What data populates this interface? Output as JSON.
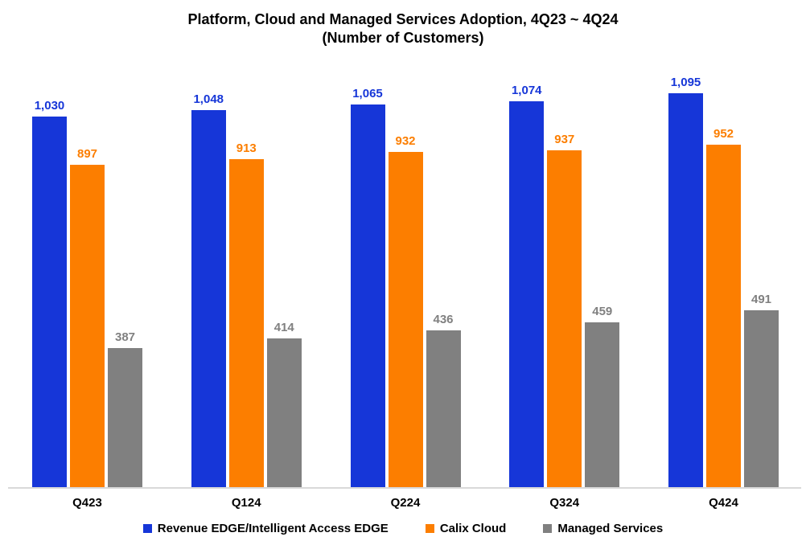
{
  "chart_data": {
    "type": "bar",
    "title": "Platform, Cloud and Managed Services Adoption, 4Q23 ~ 4Q24 (Number of Customers)",
    "title_lines": [
      "Platform, Cloud and Managed Services Adoption, 4Q23 ~ 4Q24",
      "(Number of Customers)"
    ],
    "categories": [
      "Q423",
      "Q124",
      "Q224",
      "Q324",
      "Q424"
    ],
    "series": [
      {
        "name": "Revenue EDGE/Intelligent Access EDGE",
        "color": "#1636D8",
        "values": [
          1030,
          1048,
          1065,
          1074,
          1095
        ],
        "labels": [
          "1,030",
          "1,048",
          "1,065",
          "1,074",
          "1,095"
        ]
      },
      {
        "name": "Calix Cloud",
        "color": "#FC7E00",
        "values": [
          897,
          913,
          932,
          937,
          952
        ],
        "labels": [
          "897",
          "913",
          "932",
          "937",
          "952"
        ]
      },
      {
        "name": "Managed Services",
        "color": "#808080",
        "values": [
          387,
          414,
          436,
          459,
          491
        ],
        "labels": [
          "387",
          "414",
          "436",
          "459",
          "491"
        ]
      }
    ],
    "xlabel": "",
    "ylabel": "",
    "ylim": [
      0,
      1100
    ],
    "grid": false,
    "y_axis_visible": false,
    "data_labels": true,
    "legend_position": "bottom",
    "axis_line_color": "#D9D9D9",
    "background": "#FFFFFF"
  }
}
